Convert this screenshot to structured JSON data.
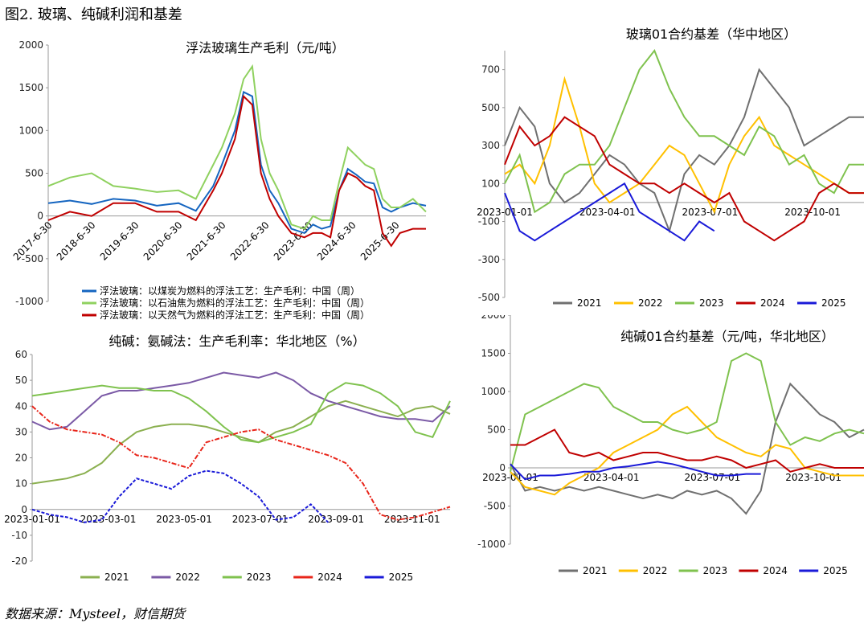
{
  "figure": {
    "title": "图2.  玻璃、纯碱利润和基差",
    "source": "数据来源：Mysteel，财信期货"
  },
  "colors": {
    "blue": "#1565c0",
    "lightgreen": "#8fd15f",
    "red": "#c00000",
    "gray": "#707070",
    "yellow": "#ffc000",
    "green": "#7fc24e",
    "purple": "#7b5aa6",
    "red2": "#e8251a",
    "navy": "#1a1ad8",
    "olive": "#8bb050"
  },
  "chart_data": [
    {
      "id": "glass-profit",
      "type": "line",
      "title": "浮法玻璃生产毛利（元/吨）",
      "yticks": [
        "2000",
        "1500",
        "1000",
        "500",
        "0",
        "-500",
        "-1000"
      ],
      "ylim": [
        -1000,
        2000
      ],
      "xlim": [
        "2017-06-30",
        "2025-09-30"
      ],
      "xticks": [
        "2017-6-30",
        "2018-6-30",
        "2019-6-30",
        "2020-6-30",
        "2021-6-30",
        "2022-6-30",
        "2023-6-30",
        "2024-6-30",
        "2025-6-30"
      ],
      "x": [
        2017.0,
        2017.5,
        2018.0,
        2018.5,
        2019.0,
        2019.5,
        2020.0,
        2020.4,
        2020.8,
        2021.0,
        2021.3,
        2021.5,
        2021.7,
        2021.9,
        2022.1,
        2022.3,
        2022.6,
        2022.9,
        2023.1,
        2023.3,
        2023.5,
        2023.7,
        2023.9,
        2024.1,
        2024.3,
        2024.5,
        2024.7,
        2024.9,
        2025.1,
        2025.4,
        2025.7
      ],
      "series": [
        {
          "name": "浮法玻璃：以煤炭为燃料的浮法工艺：生产毛利：中国（周）",
          "color": "blue",
          "values": [
            150,
            180,
            140,
            200,
            180,
            120,
            150,
            60,
            350,
            600,
            1000,
            1450,
            1400,
            600,
            300,
            150,
            -150,
            -200,
            -100,
            -150,
            -120,
            300,
            550,
            480,
            400,
            380,
            100,
            50,
            100,
            150,
            120
          ]
        },
        {
          "name": "浮法玻璃：以石油焦为燃料的浮法工艺：生产毛利：中国（周）",
          "color": "lightgreen",
          "values": [
            350,
            450,
            500,
            350,
            320,
            280,
            300,
            200,
            600,
            800,
            1200,
            1600,
            1750,
            900,
            500,
            300,
            -100,
            -150,
            0,
            -50,
            -50,
            400,
            800,
            700,
            600,
            550,
            200,
            100,
            100,
            200,
            50
          ]
        },
        {
          "name": "浮法玻璃：以天然气为燃料的浮法工艺：生产毛利：中国（周）",
          "color": "red",
          "values": [
            -50,
            50,
            0,
            150,
            150,
            50,
            50,
            -50,
            300,
            500,
            900,
            1400,
            1300,
            500,
            200,
            0,
            -200,
            -250,
            -200,
            -200,
            -250,
            300,
            500,
            450,
            350,
            300,
            -200,
            -350,
            -200,
            -150,
            -150
          ]
        }
      ]
    },
    {
      "id": "soda-profit",
      "type": "line",
      "title": "纯碱：氨碱法：生产毛利率：华北地区（%）",
      "yticks": [
        "60",
        "50",
        "40",
        "30",
        "20",
        "10",
        "0",
        "-10",
        "-20"
      ],
      "ylim": [
        -20,
        60
      ],
      "xticks": [
        "2023-01-01",
        "2023-03-01",
        "2023-05-01",
        "2023-07-01",
        "2023-09-01",
        "2023-11-01"
      ],
      "x": [
        0,
        0.5,
        1,
        1.5,
        2,
        2.5,
        3,
        3.5,
        4,
        4.5,
        5,
        5.5,
        6,
        6.5,
        7,
        7.5,
        8,
        8.5,
        9,
        9.5,
        10,
        10.5,
        11,
        11.5,
        12
      ],
      "series": [
        {
          "name": "2021",
          "color": "olive",
          "values": [
            10,
            11,
            12,
            14,
            18,
            25,
            30,
            32,
            33,
            33,
            32,
            30,
            28,
            26,
            30,
            32,
            36,
            40,
            42,
            40,
            38,
            36,
            39,
            40,
            37
          ]
        },
        {
          "name": "2022",
          "color": "purple",
          "values": [
            34,
            31,
            32,
            38,
            44,
            46,
            46,
            47,
            48,
            49,
            51,
            53,
            52,
            51,
            53,
            50,
            45,
            42,
            40,
            38,
            36,
            35,
            35,
            34,
            40
          ]
        },
        {
          "name": "2023",
          "color": "green",
          "values": [
            44,
            45,
            46,
            47,
            48,
            47,
            47,
            46,
            46,
            43,
            38,
            32,
            27,
            26,
            28,
            30,
            33,
            45,
            49,
            48,
            45,
            40,
            30,
            28,
            42
          ]
        },
        {
          "name": "2024",
          "color": "red2",
          "values": [
            40,
            34,
            31,
            30,
            29,
            26,
            21,
            20,
            18,
            16,
            26,
            28,
            30,
            31,
            27,
            25,
            23,
            21,
            18,
            10,
            -2,
            -4,
            -3,
            -1,
            1
          ]
        },
        {
          "name": "2025",
          "color": "navy",
          "values": [
            0,
            -2,
            -3,
            -5,
            -4,
            5,
            12,
            10,
            8,
            13,
            15,
            14,
            10,
            5,
            -4,
            -3,
            2,
            -5,
            null,
            null,
            null,
            null,
            null,
            null,
            null
          ]
        }
      ]
    },
    {
      "id": "glass-basis",
      "type": "line",
      "title": "玻璃01合约基差（华中地区）",
      "yticks": [
        "700",
        "500",
        "300",
        "100",
        "-100",
        "-300",
        "-500"
      ],
      "ylim": [
        -500,
        800
      ],
      "xticks": [
        "2023-01-01",
        "2023-04-01",
        "2023-07-01",
        "2023-10-01"
      ],
      "x": [
        0,
        0.5,
        1,
        1.5,
        2,
        2.5,
        3,
        3.5,
        4,
        4.5,
        5,
        5.5,
        6,
        6.5,
        7,
        7.5,
        8,
        8.5,
        9,
        9.5,
        10,
        10.5,
        11,
        11.5,
        12
      ],
      "series": [
        {
          "name": "2021",
          "color": "gray",
          "values": [
            300,
            500,
            400,
            100,
            0,
            50,
            150,
            250,
            200,
            100,
            50,
            -150,
            150,
            250,
            200,
            300,
            450,
            700,
            600,
            500,
            300,
            350,
            400,
            450,
            450
          ]
        },
        {
          "name": "2022",
          "color": "yellow",
          "values": [
            150,
            200,
            100,
            300,
            650,
            400,
            100,
            0,
            50,
            100,
            200,
            300,
            250,
            100,
            -50,
            200,
            350,
            450,
            300,
            250,
            200,
            150,
            100,
            50,
            50
          ]
        },
        {
          "name": "2023",
          "color": "green",
          "values": [
            100,
            250,
            -50,
            0,
            150,
            200,
            200,
            300,
            500,
            700,
            800,
            600,
            450,
            350,
            350,
            300,
            250,
            400,
            350,
            200,
            250,
            100,
            50,
            200,
            200
          ]
        },
        {
          "name": "2024",
          "color": "red",
          "values": [
            200,
            400,
            300,
            350,
            450,
            400,
            350,
            200,
            150,
            100,
            100,
            50,
            100,
            50,
            0,
            50,
            -100,
            -150,
            -200,
            -150,
            -100,
            50,
            100,
            50,
            50
          ]
        },
        {
          "name": "2025",
          "color": "navy",
          "values": [
            50,
            -150,
            -200,
            -150,
            -100,
            -50,
            0,
            50,
            100,
            -50,
            -100,
            -150,
            -200,
            -100,
            -150,
            null,
            null,
            null,
            null,
            null,
            null,
            null,
            null,
            null,
            null
          ]
        }
      ]
    },
    {
      "id": "soda-basis",
      "type": "line",
      "title": "纯碱01合约基差（元/吨，华北地区）",
      "yticks": [
        "2000",
        "1500",
        "1000",
        "500",
        "0",
        "-500",
        "-1000"
      ],
      "ylim": [
        -1000,
        2000
      ],
      "xticks": [
        "2023-01-01",
        "2023-04-01",
        "2023-07-01",
        "2023-10-01"
      ],
      "x": [
        0,
        0.5,
        1,
        1.5,
        2,
        2.5,
        3,
        3.5,
        4,
        4.5,
        5,
        5.5,
        6,
        6.5,
        7,
        7.5,
        8,
        8.5,
        9,
        9.5,
        10,
        10.5,
        11,
        11.5,
        12
      ],
      "series": [
        {
          "name": "2021",
          "color": "gray",
          "values": [
            50,
            -300,
            -250,
            -300,
            -250,
            -300,
            -250,
            -300,
            -350,
            -400,
            -350,
            -400,
            -300,
            -350,
            -300,
            -400,
            -600,
            -300,
            600,
            1100,
            900,
            700,
            600,
            400,
            500
          ]
        },
        {
          "name": "2022",
          "color": "yellow",
          "values": [
            -50,
            -250,
            -300,
            -350,
            -200,
            -100,
            0,
            200,
            300,
            400,
            500,
            700,
            800,
            600,
            400,
            300,
            200,
            150,
            300,
            250,
            0,
            -50,
            -100,
            -100,
            -100
          ]
        },
        {
          "name": "2023",
          "color": "green",
          "values": [
            -50,
            700,
            800,
            900,
            1000,
            1100,
            1050,
            800,
            700,
            600,
            600,
            500,
            450,
            500,
            600,
            1400,
            1500,
            1400,
            600,
            300,
            400,
            350,
            450,
            500,
            450
          ]
        },
        {
          "name": "2024",
          "color": "red",
          "values": [
            300,
            300,
            400,
            500,
            200,
            150,
            200,
            100,
            150,
            200,
            200,
            150,
            100,
            100,
            150,
            100,
            0,
            50,
            100,
            -50,
            0,
            50,
            0,
            0,
            0
          ]
        },
        {
          "name": "2025",
          "color": "navy",
          "values": [
            50,
            -150,
            -100,
            -100,
            -80,
            -50,
            -50,
            0,
            20,
            50,
            80,
            50,
            0,
            -50,
            -100,
            -100,
            -80,
            -80,
            null,
            null,
            null,
            null,
            null,
            null,
            null
          ]
        }
      ]
    }
  ]
}
